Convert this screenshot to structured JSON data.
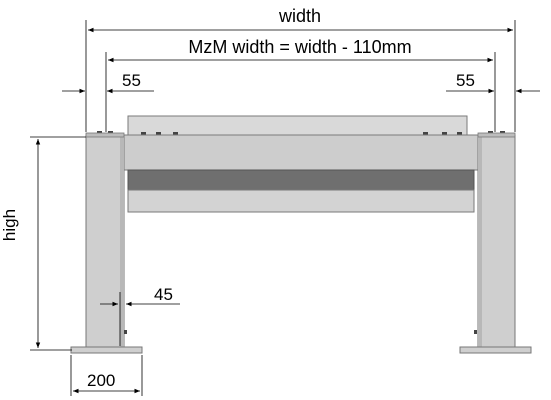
{
  "labels": {
    "width": "width",
    "mzm_width": "MzM width = width - 110mm",
    "left_offset": "55",
    "right_offset": "55",
    "height": "high",
    "leg_depth": "45",
    "foot_width": "200"
  },
  "colors": {
    "metal_light": "#d6d6d6",
    "metal_mid": "#c9c9c9",
    "metal_band": "#6f6f6f",
    "outline": "#777777",
    "dimension_line": "#000000",
    "background": "#ffffff"
  }
}
